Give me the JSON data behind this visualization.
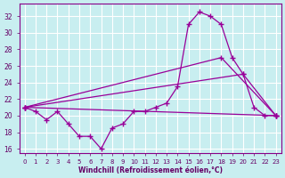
{
  "background_color": "#c8eef0",
  "grid_color": "#b8d8da",
  "line_color": "#990099",
  "xlabel": "Windchill (Refroidissement éolien,°C)",
  "x": [
    0,
    1,
    2,
    3,
    4,
    5,
    6,
    7,
    8,
    9,
    10,
    11,
    12,
    13,
    14,
    15,
    16,
    17,
    18,
    19,
    20,
    21,
    22,
    23
  ],
  "curve1": [
    21.0,
    20.5,
    19.5,
    20.5,
    19.0,
    17.5,
    17.5,
    16.0,
    18.5,
    19.0,
    20.5,
    20.5,
    21.0,
    21.5,
    23.5,
    31.0,
    32.5,
    32.0,
    31.0,
    27.0,
    25.0,
    21.0,
    20.0,
    20.0
  ],
  "curve2_x": [
    0,
    23
  ],
  "curve2_y": [
    21.0,
    20.0
  ],
  "curve3_x": [
    0,
    18,
    23
  ],
  "curve3_y": [
    21.0,
    27.0,
    20.0
  ],
  "curve4_x": [
    0,
    20,
    23
  ],
  "curve4_y": [
    21.0,
    25.0,
    20.0
  ],
  "ylim": [
    15.5,
    33.5
  ],
  "xlim": [
    -0.5,
    23.5
  ],
  "yticks": [
    16,
    18,
    20,
    22,
    24,
    26,
    28,
    30,
    32
  ]
}
